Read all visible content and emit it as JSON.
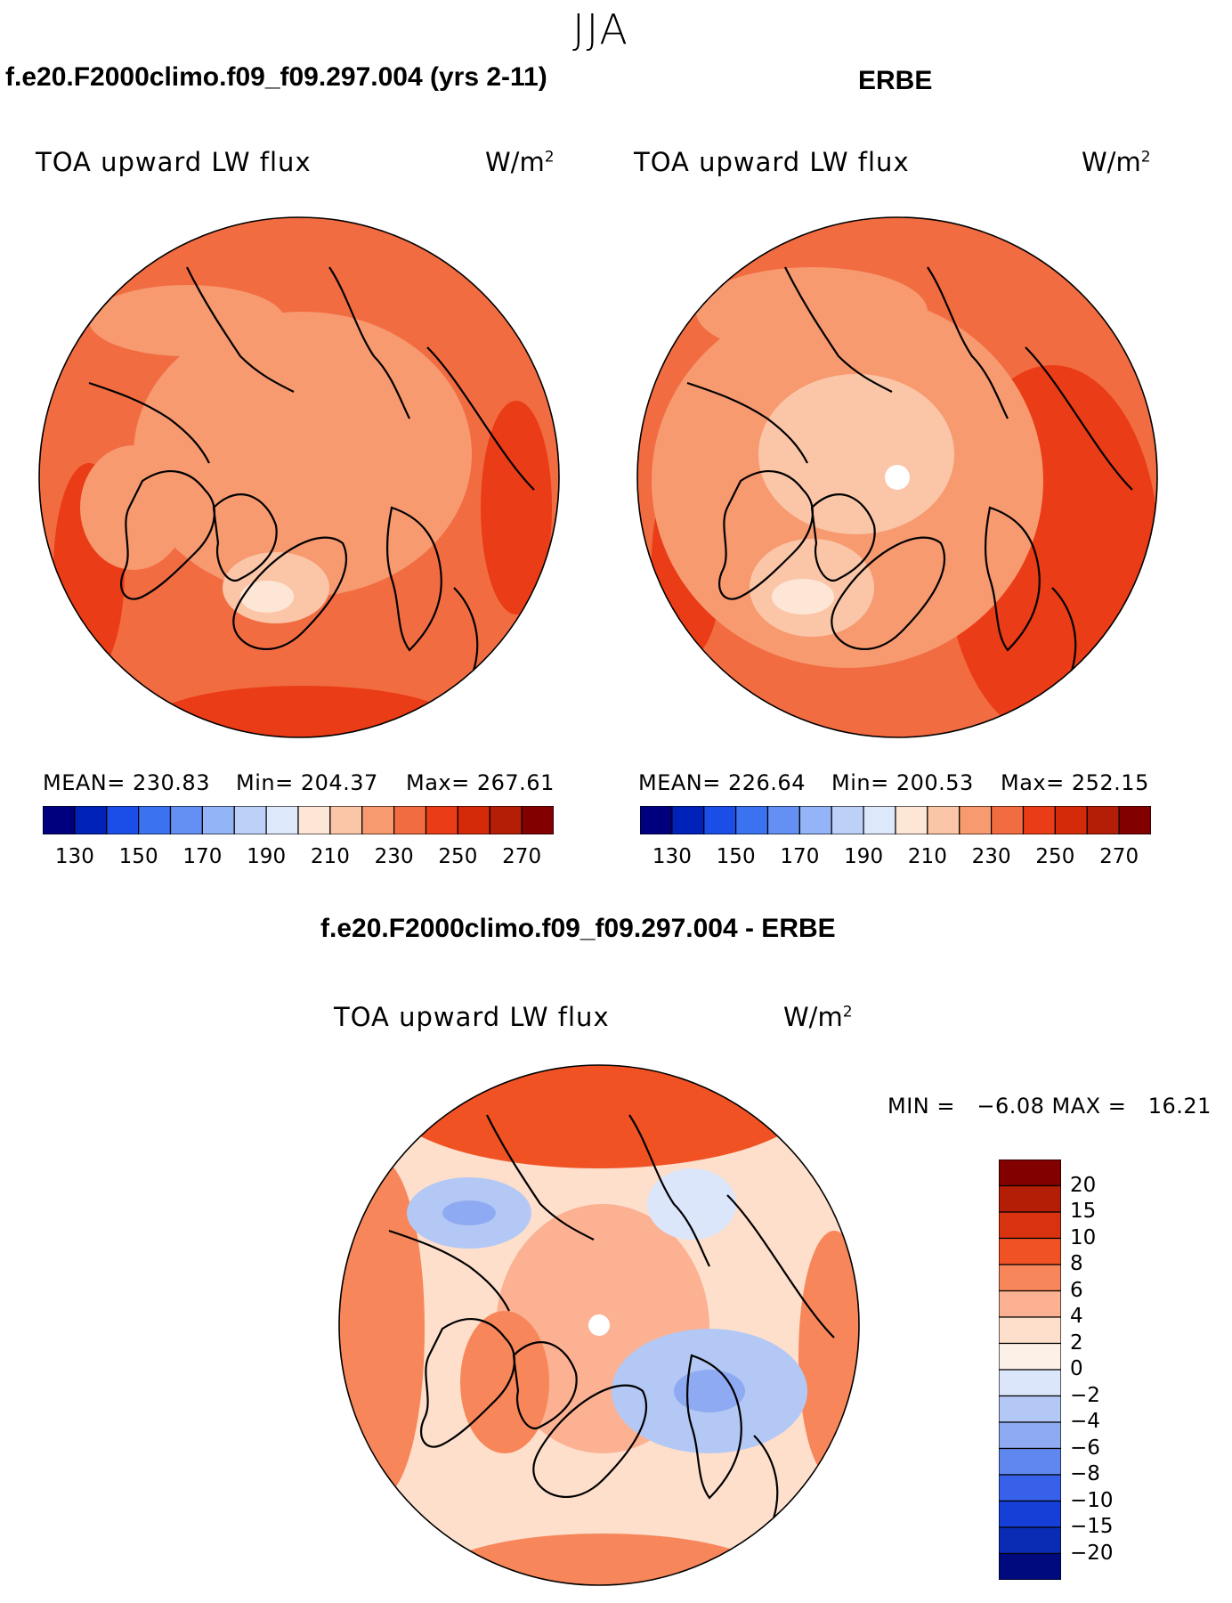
{
  "season": "JJA",
  "panels": [
    {
      "id": "model",
      "title": "f.e20.F2000climo.f09_f09.297.004 (yrs 2-11)",
      "variable": "TOA upward LW flux",
      "units": "W/m",
      "units_sup": "2",
      "stats": {
        "mean": "MEAN= 230.83",
        "min": "Min= 204.37",
        "max": "Max= 267.61"
      }
    },
    {
      "id": "obs",
      "title": "ERBE",
      "variable": "TOA upward LW flux",
      "units": "W/m",
      "units_sup": "2",
      "stats": {
        "mean": "MEAN= 226.64",
        "min": "Min= 200.53",
        "max": "Max= 252.15"
      }
    },
    {
      "id": "diff",
      "title": "f.e20.F2000climo.f09_f09.297.004 - ERBE",
      "variable": "TOA upward LW flux",
      "units": "W/m",
      "units_sup": "2",
      "stats": {
        "minmax": "MIN =   −6.08 MAX =   16.21"
      }
    }
  ],
  "chart_data": [
    {
      "type": "heatmap",
      "projection": "north-polar-stereographic",
      "title": "f.e20.F2000climo.f09_f09.297.004 (yrs 2-11)",
      "variable": "TOA upward LW flux",
      "units": "W/m2",
      "mean": 230.83,
      "min": 204.37,
      "max": 267.61,
      "colorbar": {
        "orientation": "horizontal",
        "levels": [
          130,
          140,
          150,
          160,
          170,
          180,
          190,
          200,
          210,
          220,
          230,
          240,
          250,
          260,
          270
        ],
        "tick_labels": [
          "130",
          "150",
          "170",
          "190",
          "210",
          "230",
          "250",
          "270"
        ]
      }
    },
    {
      "type": "heatmap",
      "projection": "north-polar-stereographic",
      "title": "ERBE",
      "variable": "TOA upward LW flux",
      "units": "W/m2",
      "mean": 226.64,
      "min": 200.53,
      "max": 252.15,
      "colorbar": {
        "orientation": "horizontal",
        "levels": [
          130,
          140,
          150,
          160,
          170,
          180,
          190,
          200,
          210,
          220,
          230,
          240,
          250,
          260,
          270
        ],
        "tick_labels": [
          "130",
          "150",
          "170",
          "190",
          "210",
          "230",
          "250",
          "270"
        ]
      }
    },
    {
      "type": "heatmap",
      "projection": "north-polar-stereographic",
      "title": "f.e20.F2000climo.f09_f09.297.004 - ERBE",
      "variable": "TOA upward LW flux",
      "units": "W/m2",
      "min": -6.08,
      "max": 16.21,
      "colorbar": {
        "orientation": "vertical",
        "tick_labels": [
          "20",
          "15",
          "10",
          "8",
          "6",
          "4",
          "2",
          "0",
          "−2",
          "−4",
          "−6",
          "−8",
          "−10",
          "−15",
          "−20"
        ]
      }
    }
  ],
  "colors": {
    "abs_scale": [
      "#00007f",
      "#0022b8",
      "#1a4ee6",
      "#3b72f0",
      "#6490f3",
      "#93b4f6",
      "#bcd0f8",
      "#dde8fb",
      "#fde6d6",
      "#fbc6a8",
      "#f79a70",
      "#f26c42",
      "#ea3c16",
      "#d42a0a",
      "#b51e06",
      "#820000"
    ],
    "diff_scale": [
      "#820000",
      "#b51e06",
      "#d93210",
      "#f05224",
      "#f7865a",
      "#fbb192",
      "#fddfcc",
      "#fdf0e6",
      "#dbe6fb",
      "#b4c8f6",
      "#8eaaf2",
      "#5f87ee",
      "#3661e8",
      "#163fd8",
      "#0a2cb4",
      "#000a7f"
    ]
  }
}
